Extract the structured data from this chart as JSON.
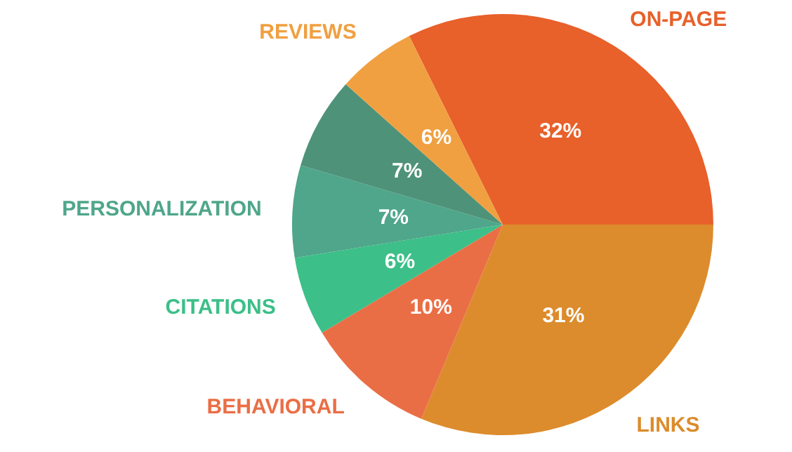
{
  "chart_data": {
    "type": "pie",
    "categories": [
      "ON-PAGE",
      "LINKS",
      "BEHAVIORAL",
      "CITATIONS",
      "PERSONALIZATION",
      null,
      "REVIEWS"
    ],
    "values": [
      32,
      31,
      10,
      6,
      7,
      7,
      6
    ],
    "colors": [
      "#e8602a",
      "#dc8c2c",
      "#ea6e45",
      "#3cbf88",
      "#4fa68a",
      "#4e9279",
      "#f0a040"
    ],
    "value_labels": [
      "32%",
      "31%",
      "10%",
      "6%",
      "7%",
      "7%",
      "6%"
    ],
    "legend": false
  }
}
